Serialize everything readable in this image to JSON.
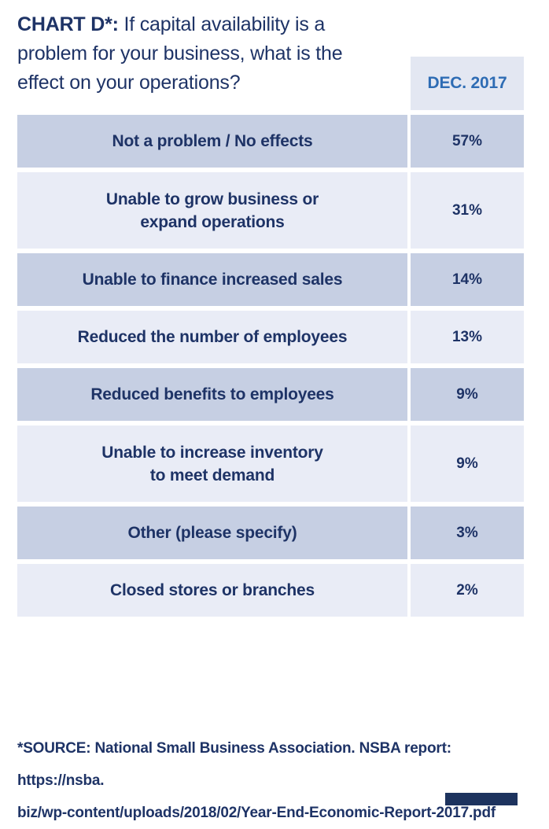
{
  "title": {
    "prefix": "CHART D*:",
    "line1_rest": " If capital availability is a",
    "line2": "problem for your business, what is the",
    "line3": "effect on your operations?"
  },
  "table": {
    "column_header": "DEC. 2017",
    "rows": [
      {
        "label": "Not a problem / No effects",
        "value": "57%"
      },
      {
        "label": "Unable to grow business or\nexpand operations",
        "value": "31%"
      },
      {
        "label": "Unable to finance increased sales",
        "value": "14%"
      },
      {
        "label": "Reduced the number of employees",
        "value": "13%"
      },
      {
        "label": "Reduced benefits to employees",
        "value": "9%"
      },
      {
        "label": "Unable to increase inventory\nto meet demand",
        "value": "9%"
      },
      {
        "label": "Other (please specify)",
        "value": "3%"
      },
      {
        "label": "Closed stores or branches",
        "value": "2%"
      }
    ]
  },
  "footer": {
    "lines": [
      "*SOURCE: National Small Business Association. NSBA report: https://nsba.",
      "biz/wp-content/uploads/2018/02/Year-End-Economic-Report-2017.pdf"
    ]
  },
  "colors": {
    "navy_text": "#1e3366",
    "header_blue": "#2e6cb4",
    "row_dark": "#c6cfe3",
    "row_light": "#e9ecf6",
    "header_cell_bg": "#e3e7f2",
    "footer_bar": "#1d335e"
  },
  "chart_data": {
    "type": "table",
    "title": "CHART D*: If capital availability is a problem for your business, what is the effect on your operations?",
    "column_header": "DEC. 2017",
    "categories": [
      "Not a problem / No effects",
      "Unable to grow business or expand operations",
      "Unable to finance increased sales",
      "Reduced the number of employees",
      "Reduced benefits to employees",
      "Unable to increase inventory to meet demand",
      "Other (please specify)",
      "Closed stores or branches"
    ],
    "values": [
      57,
      31,
      14,
      13,
      9,
      9,
      3,
      2
    ],
    "unit": "%",
    "source": "*SOURCE: National Small Business Association. NSBA report: https://nsba.biz/wp-content/uploads/2018/02/Year-End-Economic-Report-2017.pdf"
  }
}
